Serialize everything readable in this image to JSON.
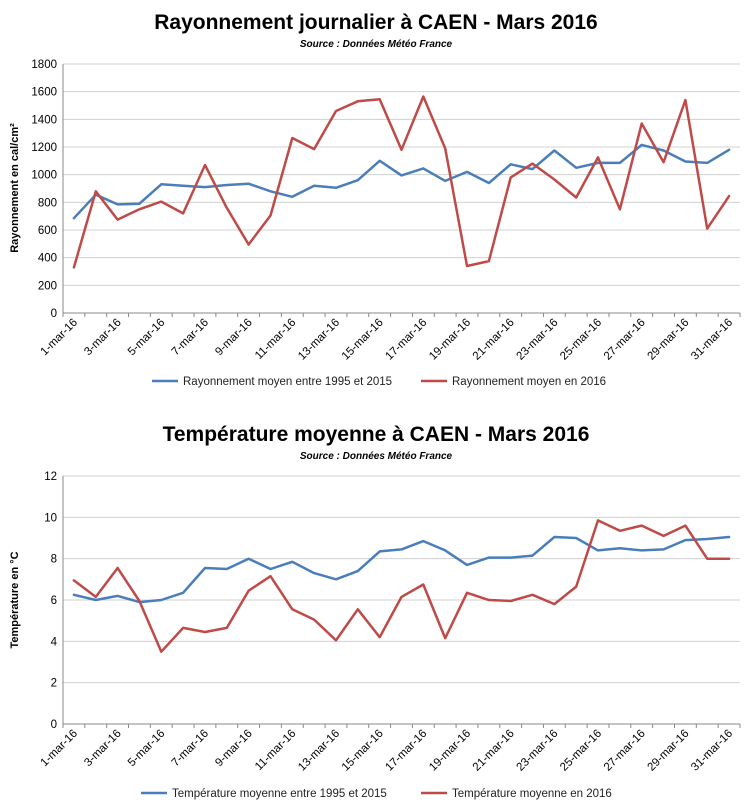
{
  "chart_data": [
    {
      "type": "line",
      "title": "Rayonnement journalier à CAEN - Mars 2016",
      "subtitle": "Source : Données Météo France",
      "ylabel": "Rayonnement en cal/cm²",
      "xlabel": "",
      "ylim": [
        0,
        1800
      ],
      "yticks": [
        0,
        200,
        400,
        600,
        800,
        1000,
        1200,
        1400,
        1600,
        1800
      ],
      "grid": true,
      "legend_position": "bottom",
      "categories": [
        "1-mar-16",
        "2-mar-16",
        "3-mar-16",
        "4-mar-16",
        "5-mar-16",
        "6-mar-16",
        "7-mar-16",
        "8-mar-16",
        "9-mar-16",
        "10-mar-16",
        "11-mar-16",
        "12-mar-16",
        "13-mar-16",
        "14-mar-16",
        "15-mar-16",
        "16-mar-16",
        "17-mar-16",
        "18-mar-16",
        "19-mar-16",
        "20-mar-16",
        "21-mar-16",
        "22-mar-16",
        "23-mar-16",
        "24-mar-16",
        "25-mar-16",
        "26-mar-16",
        "27-mar-16",
        "28-mar-16",
        "29-mar-16",
        "30-mar-16",
        "31-mar-16"
      ],
      "tick_labels": [
        "1-mar-16",
        "3-mar-16",
        "5-mar-16",
        "7-mar-16",
        "9-mar-16",
        "11-mar-16",
        "13-mar-16",
        "15-mar-16",
        "17-mar-16",
        "19-mar-16",
        "21-mar-16",
        "23-mar-16",
        "25-mar-16",
        "27-mar-16",
        "29-mar-16",
        "31-mar-16"
      ],
      "series": [
        {
          "name": "Rayonnement moyen entre 1995 et 2015",
          "color": "#4A7EBB",
          "values": [
            685,
            855,
            785,
            790,
            930,
            920,
            910,
            925,
            935,
            880,
            840,
            920,
            905,
            960,
            1100,
            995,
            1045,
            955,
            1020,
            940,
            1075,
            1040,
            1175,
            1050,
            1085,
            1085,
            1215,
            1175,
            1095,
            1085,
            1180
          ]
        },
        {
          "name": "Rayonnement moyen en 2016",
          "color": "#BE4B48",
          "values": [
            330,
            880,
            675,
            750,
            805,
            720,
            1070,
            760,
            495,
            705,
            1265,
            1185,
            1460,
            1530,
            1545,
            1180,
            1565,
            1190,
            340,
            375,
            980,
            1080,
            965,
            835,
            1125,
            750,
            1370,
            1090,
            1540,
            610,
            845
          ]
        }
      ]
    },
    {
      "type": "line",
      "title": "Température moyenne à CAEN - Mars 2016",
      "subtitle": "Source : Données Météo France",
      "ylabel": "Température en °C",
      "xlabel": "",
      "ylim": [
        0,
        12
      ],
      "yticks": [
        0,
        2,
        4,
        6,
        8,
        10,
        12
      ],
      "grid": true,
      "legend_position": "bottom",
      "categories": [
        "1-mar-16",
        "2-mar-16",
        "3-mar-16",
        "4-mar-16",
        "5-mar-16",
        "6-mar-16",
        "7-mar-16",
        "8-mar-16",
        "9-mar-16",
        "10-mar-16",
        "11-mar-16",
        "12-mar-16",
        "13-mar-16",
        "14-mar-16",
        "15-mar-16",
        "16-mar-16",
        "17-mar-16",
        "18-mar-16",
        "19-mar-16",
        "20-mar-16",
        "21-mar-16",
        "22-mar-16",
        "23-mar-16",
        "24-mar-16",
        "25-mar-16",
        "26-mar-16",
        "27-mar-16",
        "28-mar-16",
        "29-mar-16",
        "30-mar-16",
        "31-mar-16"
      ],
      "tick_labels": [
        "1-mar-16",
        "3-mar-16",
        "5-mar-16",
        "7-mar-16",
        "9-mar-16",
        "11-mar-16",
        "13-mar-16",
        "15-mar-16",
        "17-mar-16",
        "19-mar-16",
        "21-mar-16",
        "23-mar-16",
        "25-mar-16",
        "27-mar-16",
        "29-mar-16",
        "31-mar-16"
      ],
      "series": [
        {
          "name": "Température moyenne entre 1995 et 2015",
          "color": "#4A7EBB",
          "values": [
            6.25,
            6.0,
            6.2,
            5.9,
            6.0,
            6.35,
            7.55,
            7.5,
            8.0,
            7.5,
            7.85,
            7.3,
            7.0,
            7.4,
            8.35,
            8.45,
            8.85,
            8.4,
            7.7,
            8.05,
            8.05,
            8.15,
            9.05,
            9.0,
            8.4,
            8.5,
            8.4,
            8.45,
            8.9,
            8.95,
            9.05
          ]
        },
        {
          "name": "Température moyenne en 2016",
          "color": "#BE4B48",
          "values": [
            6.95,
            6.15,
            7.55,
            5.95,
            3.5,
            4.65,
            4.45,
            4.65,
            6.45,
            7.15,
            5.55,
            5.05,
            4.05,
            5.55,
            4.2,
            6.15,
            6.75,
            4.15,
            6.35,
            6.0,
            5.95,
            6.25,
            5.8,
            6.65,
            9.85,
            9.35,
            9.6,
            9.1,
            9.6,
            8.0,
            8.0
          ]
        }
      ]
    }
  ]
}
